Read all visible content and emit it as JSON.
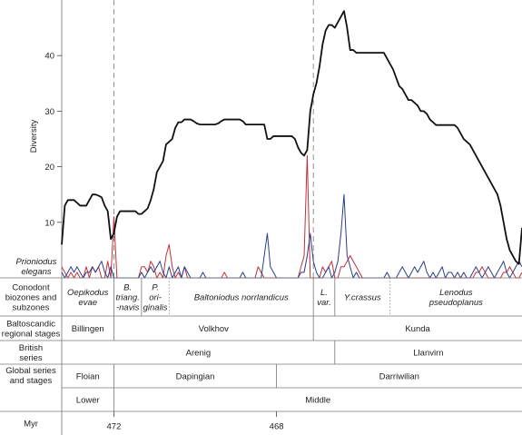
{
  "chart_data": {
    "type": "line",
    "ylabel": "Diversity",
    "ylim": [
      0,
      50
    ],
    "yticks": [
      10,
      20,
      30,
      40
    ],
    "x": [
      0,
      1,
      2,
      3,
      4,
      5,
      6,
      7,
      8,
      9,
      10,
      11,
      12,
      13,
      14,
      15,
      16,
      17,
      18,
      19,
      20,
      21,
      22,
      23,
      24,
      25,
      26,
      27,
      28,
      29,
      30,
      31,
      32,
      33,
      34,
      35,
      36,
      37,
      38,
      39,
      40,
      41,
      42,
      43,
      44,
      45,
      46,
      47,
      48,
      49,
      50,
      51,
      52,
      53,
      54,
      55,
      56,
      57,
      58,
      59,
      60,
      61,
      62,
      63,
      64,
      65,
      66,
      67,
      68,
      69,
      70,
      71,
      72,
      73,
      74,
      75,
      76,
      77,
      78,
      79,
      80,
      81,
      82,
      83,
      84,
      85,
      86,
      87,
      88,
      89,
      90,
      91,
      92,
      93,
      94,
      95,
      96,
      97,
      98,
      99,
      100,
      101,
      102,
      103,
      104,
      105,
      106,
      107,
      108,
      109,
      110,
      111,
      112,
      113,
      114,
      115,
      116,
      117,
      118,
      119,
      120,
      121,
      122,
      123,
      124,
      125,
      126,
      127,
      128,
      129,
      130,
      131,
      132,
      133,
      134,
      135,
      136,
      137,
      138,
      139,
      140,
      141,
      142,
      143,
      144,
      145,
      146,
      147,
      148,
      149,
      150
    ],
    "series": [
      {
        "color": "#111111",
        "stroke": 1.8,
        "values": [
          6,
          13,
          14,
          14,
          14,
          13.5,
          13,
          13,
          13,
          14,
          15,
          15,
          14.8,
          14.5,
          13,
          12,
          7,
          8,
          11,
          12,
          12,
          12,
          12,
          12,
          12,
          11.5,
          11.5,
          12,
          12.5,
          14,
          16,
          19,
          20,
          21,
          24,
          24.5,
          25,
          27,
          28,
          28,
          28.5,
          28.5,
          28.5,
          28.2,
          27.8,
          27.6,
          27.6,
          27.6,
          27.6,
          27.6,
          27.6,
          27.8,
          28.2,
          28.5,
          28.5,
          28.5,
          28.5,
          28.5,
          28.5,
          28.2,
          27.6,
          27.6,
          27.6,
          27.6,
          27.6,
          27.6,
          27.6,
          25,
          25,
          25.5,
          25.5,
          25.5,
          25.5,
          25.5,
          25.5,
          25.5,
          25,
          23.5,
          22.5,
          22,
          23,
          30,
          33,
          35,
          38,
          42,
          44.5,
          45.5,
          45.5,
          45,
          46,
          47,
          48,
          45,
          41,
          41,
          40.5,
          40.5,
          40.5,
          40.5,
          40.5,
          40.5,
          40.5,
          40.5,
          40.5,
          40.5,
          39.5,
          38.5,
          37.5,
          36,
          34.5,
          34,
          33,
          32,
          32,
          31.5,
          31,
          30,
          30,
          29.5,
          28.5,
          28,
          27.5,
          27.5,
          27.5,
          27.5,
          27.5,
          27.5,
          27.5,
          27,
          26,
          25,
          24.5,
          24,
          23,
          22,
          21,
          20,
          19,
          18,
          17,
          16,
          15,
          13,
          10,
          7,
          5,
          4,
          3,
          2.5,
          9
        ]
      },
      {
        "color": "#c0303a",
        "stroke": 1.0,
        "values": [
          2,
          1,
          0,
          1,
          0,
          1,
          0,
          0,
          2,
          0,
          2,
          1,
          2,
          0,
          0,
          3,
          0,
          11,
          0,
          0,
          0,
          0,
          0,
          0,
          0,
          0,
          2,
          2,
          1,
          3,
          2,
          0,
          1,
          0,
          4,
          6,
          2,
          0,
          1,
          0,
          2,
          0,
          0,
          0,
          0,
          0,
          0,
          0,
          0,
          0,
          0,
          0,
          0,
          1,
          0,
          0,
          0,
          0,
          0,
          0,
          0,
          0,
          0,
          0,
          2,
          1,
          0,
          0,
          0,
          0,
          0,
          0,
          0,
          0,
          0,
          0,
          0,
          0,
          2,
          4,
          22,
          0,
          0,
          0,
          0,
          2,
          1,
          2,
          3,
          0,
          0,
          2,
          2,
          3,
          4,
          3,
          2,
          1,
          0,
          0,
          0,
          0,
          0,
          0,
          0,
          0,
          0,
          0,
          0,
          0,
          0,
          0,
          0,
          0,
          0,
          0,
          0,
          0,
          0,
          0,
          0,
          0,
          0,
          0,
          0,
          0,
          0,
          0,
          0,
          0,
          0,
          0,
          0,
          0,
          0,
          1,
          1,
          2,
          1,
          0,
          0,
          0,
          0,
          0,
          1,
          1,
          2,
          1,
          0,
          0,
          1
        ]
      },
      {
        "color": "#2a3f85",
        "stroke": 1.0,
        "values": [
          1,
          0,
          1,
          2,
          1,
          2,
          1,
          0,
          1,
          1,
          2,
          1,
          2,
          3,
          1,
          0,
          2,
          0,
          0,
          0,
          0,
          0,
          0,
          0,
          0,
          0,
          1,
          0,
          1,
          2,
          1,
          2,
          3,
          1,
          0,
          2,
          0,
          1,
          2,
          0,
          2,
          1,
          0,
          0,
          0,
          0,
          1,
          0,
          0,
          0,
          0,
          0,
          0,
          0,
          0,
          0,
          0,
          0,
          0,
          1,
          0,
          0,
          0,
          0,
          0,
          0,
          4,
          8,
          2,
          1,
          0,
          0,
          0,
          0,
          0,
          0,
          0,
          0,
          1,
          1,
          4,
          8,
          3,
          1,
          0,
          0,
          1,
          2,
          0,
          1,
          3,
          8,
          15,
          4,
          2,
          0,
          1,
          0,
          0,
          0,
          0,
          0,
          0,
          0,
          0,
          0,
          1,
          0,
          0,
          0,
          1,
          2,
          1,
          0,
          1,
          2,
          1,
          2,
          3,
          1,
          0,
          1,
          0,
          1,
          2,
          0,
          1,
          1,
          0,
          1,
          0,
          1,
          0,
          0,
          1,
          2,
          1,
          0,
          1,
          2,
          1,
          0,
          1,
          2,
          3,
          1,
          0,
          1,
          2,
          3,
          2
        ]
      }
    ],
    "dashed_at": [
      17,
      82
    ]
  },
  "strat_table": {
    "rows": [
      {
        "header": [
          "Prioniodus",
          "elegans"
        ],
        "header_italic": true,
        "cells": []
      },
      {
        "header": [
          "Conodont",
          "biozones and",
          "subzones"
        ],
        "cells": [
          {
            "from": 0,
            "to": 17,
            "lines": [
              "Oepikodus",
              "evae"
            ],
            "italic": true
          },
          {
            "from": 17,
            "to": 26,
            "lines": [
              "B.",
              "triang.",
              "-navis"
            ],
            "italic": true
          },
          {
            "from": 26,
            "to": 35,
            "lines": [
              "P.",
              "ori-",
              "ginalis"
            ],
            "italic": true
          },
          {
            "from": 35,
            "to": 82,
            "lines": [
              "Baltoniodus norrlandicus"
            ],
            "italic": true
          },
          {
            "from": 82,
            "to": 89,
            "lines": [
              "L.",
              "var."
            ],
            "italic": true
          },
          {
            "from": 89,
            "to": 107,
            "lines": [
              "Y.crassus"
            ],
            "italic": true
          },
          {
            "from": 107,
            "to": 150,
            "lines": [
              "Lenodus",
              "pseudoplanus"
            ],
            "italic": true
          }
        ]
      },
      {
        "header": [
          "Baltoscandic",
          "regional stages"
        ],
        "cells": [
          {
            "from": 0,
            "to": 17,
            "lines": [
              "Billingen"
            ]
          },
          {
            "from": 17,
            "to": 82,
            "lines": [
              "Volkhov"
            ]
          },
          {
            "from": 82,
            "to": 150,
            "lines": [
              "Kunda"
            ]
          }
        ]
      },
      {
        "header": [
          "British",
          "series"
        ],
        "cells": [
          {
            "from": 0,
            "to": 89,
            "lines": [
              "Arenig"
            ]
          },
          {
            "from": 89,
            "to": 150,
            "lines": [
              "Llanvirn"
            ]
          }
        ]
      },
      {
        "header": [
          "Global series",
          "and stages"
        ],
        "merged_header": true,
        "cells": [
          {
            "from": 0,
            "to": 17,
            "lines": [
              "Floian"
            ]
          },
          {
            "from": 17,
            "to": 70,
            "lines": [
              "Dapingian"
            ]
          },
          {
            "from": 70,
            "to": 150,
            "lines": [
              "Darriwilian"
            ]
          }
        ]
      },
      {
        "header": [],
        "cells": [
          {
            "from": 0,
            "to": 17,
            "lines": [
              "Lower"
            ]
          },
          {
            "from": 17,
            "to": 150,
            "lines": [
              "Middle"
            ]
          }
        ]
      },
      {
        "header": [
          "Myr"
        ],
        "cells": [
          {
            "at": 17,
            "lines": [
              "472"
            ]
          },
          {
            "at": 70,
            "lines": [
              "468"
            ]
          }
        ]
      }
    ]
  }
}
